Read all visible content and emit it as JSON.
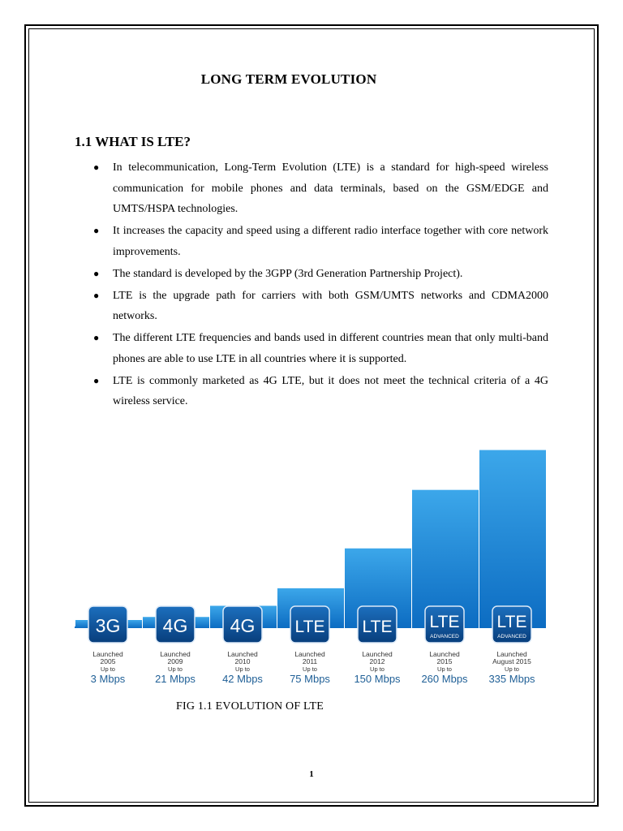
{
  "document": {
    "title": "LONG TERM EVOLUTION",
    "section_heading": "1.1 WHAT IS LTE?",
    "bullets": [
      "In telecommunication, Long-Term Evolution (LTE) is a standard for high-speed wireless communication for mobile phones and data terminals, based on the GSM/EDGE and UMTS/HSPA technologies.",
      "It increases the capacity and speed using a different radio interface together with core network improvements.",
      "The standard is developed by the 3GPP (3rd Generation Partnership Project).",
      "LTE is the upgrade path for carriers with both GSM/UMTS networks and CDMA2000 networks.",
      "The different LTE frequencies and bands used in different countries mean that only multi-band phones are able to use LTE in all countries where it is supported.",
      "LTE is commonly marketed as 4G LTE, but it does not meet the technical criteria of a 4G wireless service."
    ],
    "figure_caption": "FIG 1.1  EVOLUTION OF LTE",
    "page_number": "1"
  },
  "colors": {
    "bar_light": "#3ca7ea",
    "bar_dark": "#0c6cc2",
    "badge": "#0a4f96",
    "speed_text": "#1f5f96",
    "label_text": "#333333"
  },
  "chart_data": {
    "type": "bar",
    "categories": [
      "3G",
      "4G",
      "4G",
      "LTE",
      "LTE",
      "LTE",
      "LTE"
    ],
    "badge_sublabels": [
      "",
      "",
      "",
      "",
      "",
      "ADVANCED",
      "ADVANCED"
    ],
    "launch_label": "Launched",
    "launched": [
      "2005",
      "2009",
      "2010",
      "2011",
      "2012",
      "2015",
      "August 2015"
    ],
    "up_to_label": "Up to",
    "speeds": [
      "3 Mbps",
      "21 Mbps",
      "42 Mbps",
      "75 Mbps",
      "150 Mbps",
      "260 Mbps",
      "335 Mbps"
    ],
    "values": [
      3,
      21,
      42,
      75,
      150,
      260,
      335
    ],
    "ylim": [
      0,
      345
    ]
  }
}
